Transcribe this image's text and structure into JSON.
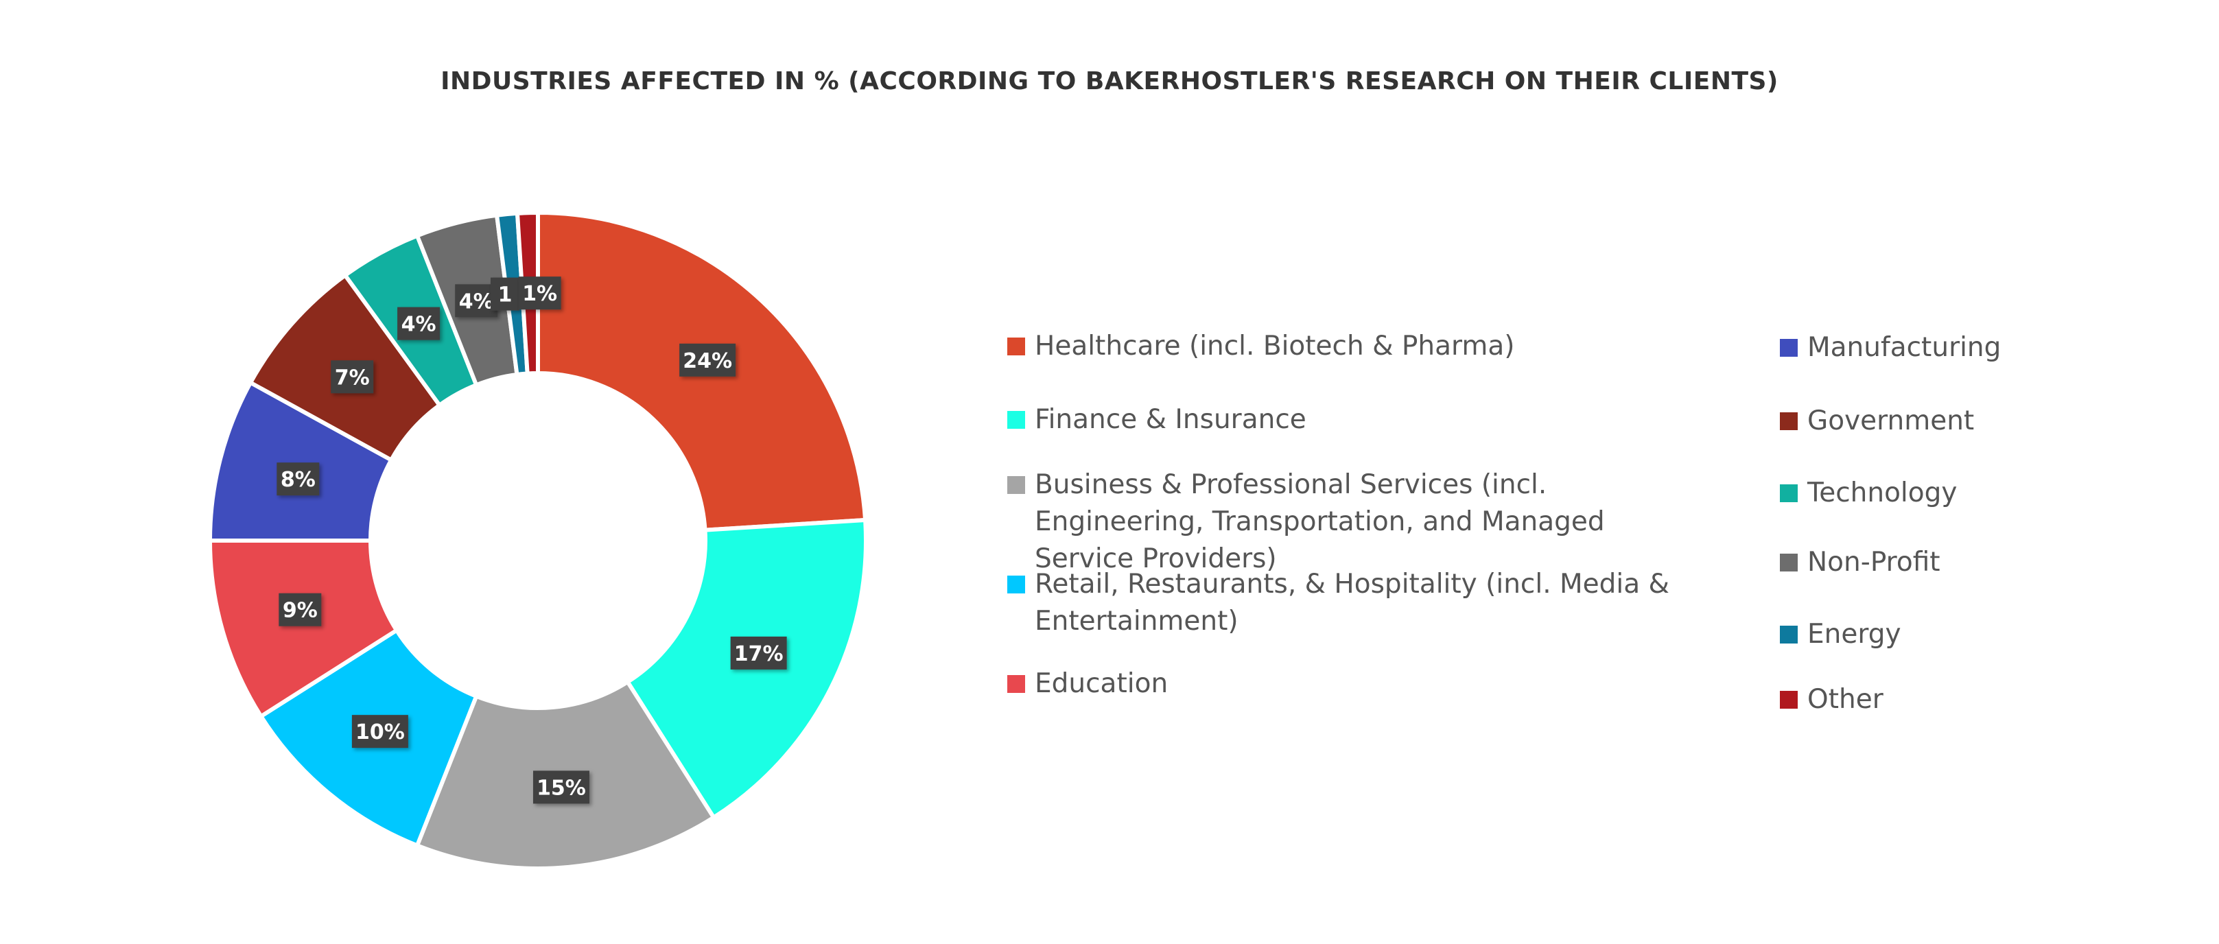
{
  "chart_data": {
    "type": "pie",
    "subtype": "donut",
    "title": "INDUSTRIES AFFECTED IN % (ACCORDING TO BAKERHOSTLER'S RESEARCH ON THEIR CLIENTS)",
    "legend_position": "right",
    "slices": [
      {
        "name": "Healthcare (incl. Biotech & Pharma)",
        "value": 24,
        "label": "24%",
        "color": "#DB482B"
      },
      {
        "name": "Finance & Insurance",
        "value": 17,
        "label": "17%",
        "color": "#1BFFE4"
      },
      {
        "name": "Business & Professional Services (incl. Engineering, Transportation, and Managed Service Providers)",
        "value": 15,
        "label": "15%",
        "color": "#A5A5A5"
      },
      {
        "name": "Retail, Restaurants, & Hospitality (incl. Media & Entertainment)",
        "value": 10,
        "label": "10%",
        "color": "#00C8FF"
      },
      {
        "name": "Education",
        "value": 9,
        "label": "9%",
        "color": "#E8484E"
      },
      {
        "name": "Manufacturing",
        "value": 8,
        "label": "8%",
        "color": "#3F4DBD"
      },
      {
        "name": "Government",
        "value": 7,
        "label": "7%",
        "color": "#8C2A1C"
      },
      {
        "name": "Technology",
        "value": 4,
        "label": "4%",
        "color": "#11B0A0"
      },
      {
        "name": "Non-Profit",
        "value": 4,
        "label": "4%",
        "color": "#6D6D6D"
      },
      {
        "name": "Energy",
        "value": 1,
        "label": "1",
        "color": "#0E7A9E"
      },
      {
        "name": "Other",
        "value": 1,
        "label": "1%",
        "color": "#B0181E"
      }
    ]
  }
}
